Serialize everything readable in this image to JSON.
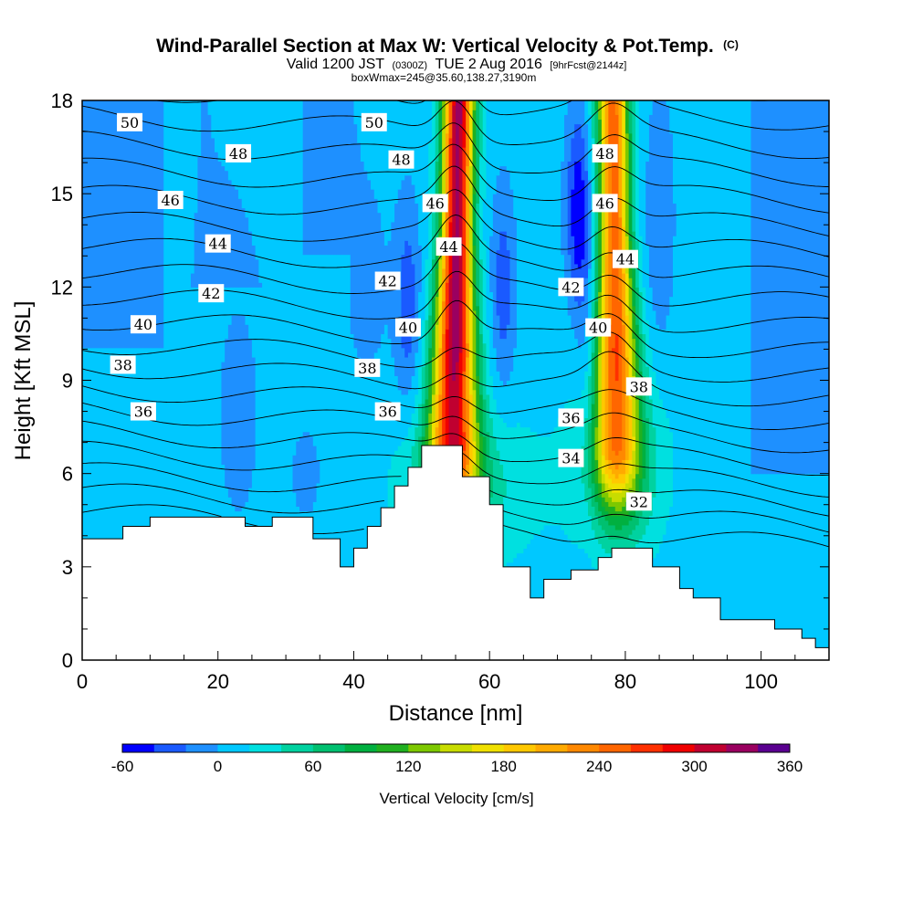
{
  "chart_data": {
    "type": "heatmap",
    "title": "Wind-Parallel Section at Max W: Vertical Velocity & Pot.Temp.",
    "title_mark": "(C)",
    "subtitle": {
      "part1": "Valid 1200 JST",
      "part2": "(0300Z)",
      "part3": "TUE 2 Aug 2016",
      "part4": "[9hrFcst@2144z]"
    },
    "subtitle2": "boxWmax=245@35.60,138.27,3190m",
    "xlabel": "Distance [nm]",
    "ylabel": "Height [Kft MSL]",
    "xlim": [
      0,
      110
    ],
    "ylim": [
      0,
      18
    ],
    "xticks": [
      "0",
      "20",
      "40",
      "60",
      "80",
      "100"
    ],
    "xtick_values": [
      0,
      20,
      40,
      60,
      80,
      100
    ],
    "yticks": [
      "0",
      "3",
      "6",
      "9",
      "12",
      "15",
      "18"
    ],
    "ytick_values": [
      0,
      3,
      6,
      9,
      12,
      15,
      18
    ],
    "colorbar": {
      "label": "Vertical Velocity [cm/s]",
      "min": -60,
      "max": 360,
      "step": 20,
      "tick_labels": [
        "-60",
        "0",
        "60",
        "120",
        "180",
        "240",
        "300",
        "360"
      ],
      "tick_values": [
        -60,
        0,
        60,
        120,
        180,
        240,
        300,
        360
      ],
      "colors": [
        "#0000ff",
        "#1a5aff",
        "#1e90ff",
        "#00c8ff",
        "#00e0e0",
        "#00d2a0",
        "#00c070",
        "#00b040",
        "#20b020",
        "#7dc800",
        "#c8dc00",
        "#f0e000",
        "#ffc800",
        "#ffaa00",
        "#ff8800",
        "#ff6600",
        "#ff3000",
        "#f00000",
        "#c00030",
        "#9a0060",
        "#5a0090"
      ]
    },
    "terrain": {
      "x": [
        0,
        2,
        4,
        6,
        8,
        10,
        12,
        14,
        16,
        18,
        20,
        22,
        24,
        26,
        28,
        30,
        32,
        34,
        36,
        38,
        40,
        42,
        44,
        46,
        48,
        50,
        52,
        54,
        56,
        58,
        60,
        62,
        64,
        66,
        68,
        70,
        72,
        74,
        76,
        78,
        80,
        82,
        84,
        86,
        88,
        90,
        92,
        94,
        96,
        98,
        100,
        102,
        104,
        106,
        108,
        110
      ],
      "height_kft": [
        3.9,
        3.9,
        3.9,
        4.3,
        4.3,
        4.6,
        4.6,
        4.6,
        4.6,
        4.6,
        4.6,
        4.6,
        4.3,
        4.3,
        4.6,
        4.6,
        4.6,
        3.9,
        3.9,
        3.0,
        3.6,
        4.3,
        4.9,
        5.6,
        6.2,
        6.9,
        6.9,
        6.9,
        5.9,
        5.9,
        5.0,
        3.0,
        3.0,
        2.0,
        2.6,
        2.6,
        2.9,
        2.9,
        3.3,
        3.6,
        3.6,
        3.6,
        3.0,
        3.0,
        2.3,
        2.0,
        2.0,
        1.3,
        1.3,
        1.3,
        1.3,
        1.0,
        1.0,
        0.7,
        0.4,
        0.4
      ]
    },
    "updrafts": [
      {
        "x_center": 55,
        "peak_cm_s": 320,
        "z_top_kft": 18,
        "z_bottom_kft": 7
      },
      {
        "x_center": 78.5,
        "peak_cm_s": 245,
        "z_top_kft": 18,
        "z_bottom_kft": 7
      }
    ],
    "downdrafts": [
      {
        "x_center": 73,
        "z_center_kft": 14.5,
        "min_cm_s": -60
      },
      {
        "x_center": 62,
        "z_center_kft": 12,
        "min_cm_s": -40
      },
      {
        "x_center": 48,
        "z_center_kft": 11.5,
        "min_cm_s": -40
      }
    ],
    "pot_temp_contours": [
      {
        "value": 32,
        "label": "32",
        "label_x": 82,
        "label_y": 5.1
      },
      {
        "value": 34,
        "label": "34",
        "label_x": 72,
        "label_y": 6.5
      },
      {
        "value": 36,
        "label": "36",
        "label_x": 72,
        "label_y": 7.8
      },
      {
        "value": 38,
        "label": "38",
        "label_x": 82,
        "label_y": 8.8
      },
      {
        "value": 40,
        "label": "40",
        "label_x": 76,
        "label_y": 10.7
      },
      {
        "value": 42,
        "label": "42",
        "label_x": 72,
        "label_y": 12
      },
      {
        "value": 44,
        "label": "44",
        "label_x": 80,
        "label_y": 12.9
      },
      {
        "value": 46,
        "label": "46",
        "label_x": 77,
        "label_y": 14.7
      },
      {
        "value": 48,
        "label": "48",
        "label_x": 77,
        "label_y": 16.3
      },
      {
        "value": 50,
        "label": "50",
        "label_x": 43,
        "label_y": 17.3
      }
    ],
    "contour_labels_left": [
      {
        "label": "50",
        "x": 7,
        "y": 17.3
      },
      {
        "label": "48",
        "x": 23,
        "y": 16.3
      },
      {
        "label": "46",
        "x": 13,
        "y": 14.8
      },
      {
        "label": "44",
        "x": 20,
        "y": 13.4
      },
      {
        "label": "42",
        "x": 19,
        "y": 11.8
      },
      {
        "label": "40",
        "x": 9,
        "y": 10.8
      },
      {
        "label": "38",
        "x": 6,
        "y": 9.5
      },
      {
        "label": "36",
        "x": 9,
        "y": 8.0
      },
      {
        "label": "42",
        "x": 45,
        "y": 12.2
      },
      {
        "label": "40",
        "x": 48,
        "y": 10.7
      },
      {
        "label": "38",
        "x": 42,
        "y": 9.4
      },
      {
        "label": "36",
        "x": 45,
        "y": 8.0
      },
      {
        "label": "48",
        "x": 47,
        "y": 16.1
      },
      {
        "label": "46",
        "x": 52,
        "y": 14.7
      },
      {
        "label": "44",
        "x": 54,
        "y": 13.3
      }
    ]
  }
}
